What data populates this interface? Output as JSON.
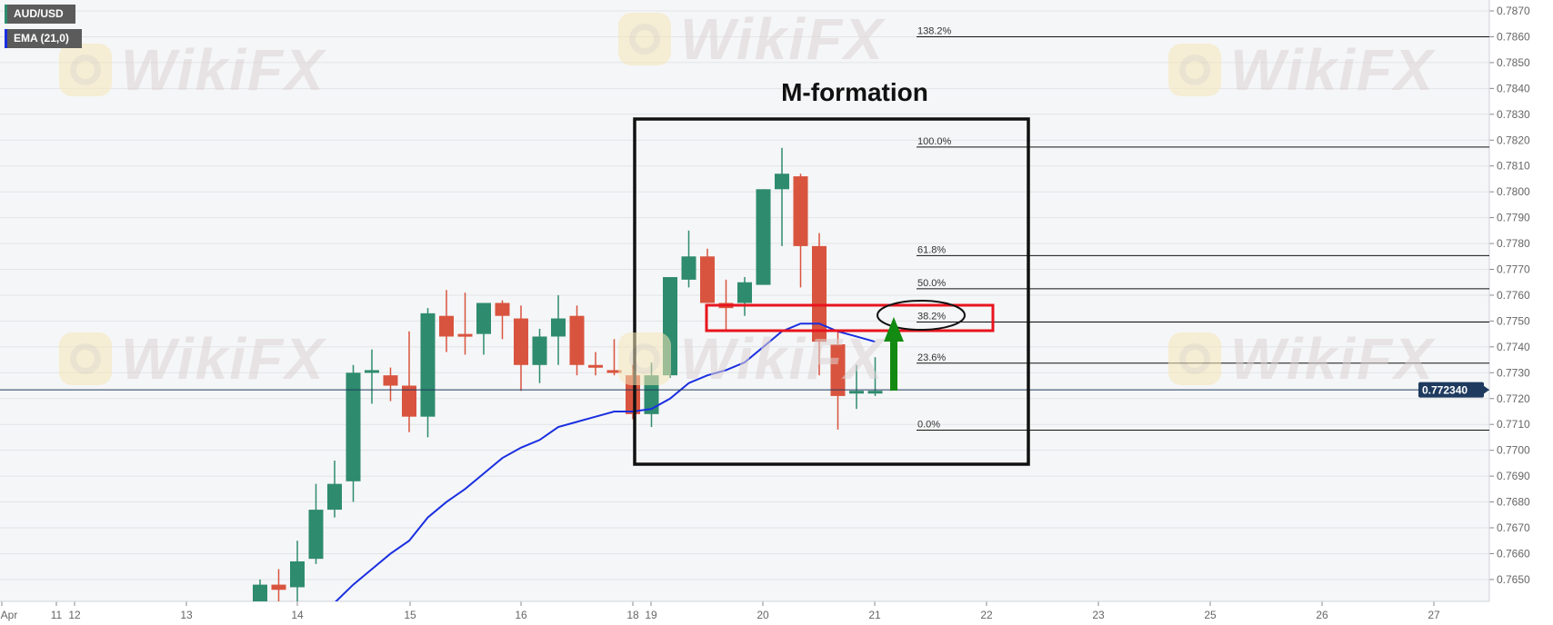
{
  "legend": {
    "symbol": "AUD/USD",
    "indicator": "EMA (21,0)"
  },
  "watermark": "WikiFX",
  "annotation": {
    "title": "M-formation"
  },
  "colors": {
    "up": "#2e8b6e",
    "down": "#d9543f",
    "ema": "#1a2fe0",
    "price_line": "#1e3a5f",
    "highlight_box": "#e8141e",
    "arrow": "#138a12",
    "frame": "#111111"
  },
  "chart_data": {
    "type": "candlestick",
    "symbol": "AUD/USD",
    "ylim": [
      0.7641,
      0.7874
    ],
    "grid": true,
    "y_ticks": [
      "0.7870",
      "0.7860",
      "0.7850",
      "0.7840",
      "0.7830",
      "0.7820",
      "0.7810",
      "0.7800",
      "0.7790",
      "0.7780",
      "0.7770",
      "0.7760",
      "0.7750",
      "0.7740",
      "0.7730",
      "0.7720",
      "0.7710",
      "0.7700",
      "0.7690",
      "0.7680",
      "0.7670",
      "0.7660",
      "0.7650"
    ],
    "x_ticks": [
      "Apr",
      "11",
      "12",
      "13",
      "14",
      "15",
      "16",
      "18",
      "19",
      "20",
      "21",
      "22",
      "23",
      "25",
      "26",
      "27"
    ],
    "last_price": "0.772340",
    "last_price_value": 0.77234,
    "candles": [
      {
        "t": "Apr 13 16:00",
        "o": 0.7638,
        "h": 0.765,
        "l": 0.7635,
        "c": 0.7648
      },
      {
        "t": "Apr 13 20:00",
        "o": 0.7648,
        "h": 0.7654,
        "l": 0.764,
        "c": 0.7646
      },
      {
        "t": "Apr 14 00:00",
        "o": 0.7647,
        "h": 0.7665,
        "l": 0.764,
        "c": 0.7657
      },
      {
        "t": "Apr 14 04:00",
        "o": 0.7658,
        "h": 0.7687,
        "l": 0.7656,
        "c": 0.7677
      },
      {
        "t": "Apr 14 08:00",
        "o": 0.7677,
        "h": 0.7696,
        "l": 0.7674,
        "c": 0.7687
      },
      {
        "t": "Apr 14 12:00",
        "o": 0.7688,
        "h": 0.7733,
        "l": 0.768,
        "c": 0.773
      },
      {
        "t": "Apr 14 16:00",
        "o": 0.773,
        "h": 0.7739,
        "l": 0.7718,
        "c": 0.7731
      },
      {
        "t": "Apr 14 20:00",
        "o": 0.7729,
        "h": 0.7732,
        "l": 0.7719,
        "c": 0.7725
      },
      {
        "t": "Apr 15 00:00",
        "o": 0.7725,
        "h": 0.7746,
        "l": 0.7707,
        "c": 0.7713
      },
      {
        "t": "Apr 15 04:00",
        "o": 0.7713,
        "h": 0.7755,
        "l": 0.7705,
        "c": 0.7753
      },
      {
        "t": "Apr 15 08:00",
        "o": 0.7752,
        "h": 0.7762,
        "l": 0.7738,
        "c": 0.7744
      },
      {
        "t": "Apr 15 12:00",
        "o": 0.7745,
        "h": 0.7761,
        "l": 0.7737,
        "c": 0.7744
      },
      {
        "t": "Apr 15 16:00",
        "o": 0.7745,
        "h": 0.7757,
        "l": 0.7737,
        "c": 0.7757
      },
      {
        "t": "Apr 15 20:00",
        "o": 0.7757,
        "h": 0.7758,
        "l": 0.7743,
        "c": 0.7752
      },
      {
        "t": "Apr 16 00:00",
        "o": 0.7751,
        "h": 0.7756,
        "l": 0.7723,
        "c": 0.7733
      },
      {
        "t": "Apr 16 04:00",
        "o": 0.7733,
        "h": 0.7747,
        "l": 0.7726,
        "c": 0.7744
      },
      {
        "t": "Apr 16 08:00",
        "o": 0.7744,
        "h": 0.776,
        "l": 0.7733,
        "c": 0.7751
      },
      {
        "t": "Apr 16 12:00",
        "o": 0.7752,
        "h": 0.7756,
        "l": 0.7729,
        "c": 0.7733
      },
      {
        "t": "Apr 16 16:00",
        "o": 0.7733,
        "h": 0.7738,
        "l": 0.7729,
        "c": 0.7732
      },
      {
        "t": "Apr 16 20:00",
        "o": 0.7731,
        "h": 0.7743,
        "l": 0.7729,
        "c": 0.773
      },
      {
        "t": "Apr 18 21:00",
        "o": 0.7729,
        "h": 0.7733,
        "l": 0.7712,
        "c": 0.7714
      },
      {
        "t": "Apr 19 00:00",
        "o": 0.7714,
        "h": 0.7734,
        "l": 0.7709,
        "c": 0.7729
      },
      {
        "t": "Apr 19 04:00",
        "o": 0.7729,
        "h": 0.7767,
        "l": 0.7728,
        "c": 0.7767
      },
      {
        "t": "Apr 19 08:00",
        "o": 0.7766,
        "h": 0.7785,
        "l": 0.7763,
        "c": 0.7775
      },
      {
        "t": "Apr 19 12:00",
        "o": 0.7775,
        "h": 0.7778,
        "l": 0.7757,
        "c": 0.7757
      },
      {
        "t": "Apr 19 16:00",
        "o": 0.7757,
        "h": 0.7766,
        "l": 0.7746,
        "c": 0.7755
      },
      {
        "t": "Apr 19 20:00",
        "o": 0.7757,
        "h": 0.7767,
        "l": 0.7752,
        "c": 0.7765
      },
      {
        "t": "Apr 20 00:00",
        "o": 0.7764,
        "h": 0.7801,
        "l": 0.7764,
        "c": 0.7801
      },
      {
        "t": "Apr 20 04:00",
        "o": 0.7801,
        "h": 0.7817,
        "l": 0.7779,
        "c": 0.7807
      },
      {
        "t": "Apr 20 08:00",
        "o": 0.7806,
        "h": 0.7807,
        "l": 0.7763,
        "c": 0.7779
      },
      {
        "t": "Apr 20 12:00",
        "o": 0.7779,
        "h": 0.7784,
        "l": 0.7729,
        "c": 0.7742
      },
      {
        "t": "Apr 20 16:00",
        "o": 0.7741,
        "h": 0.7746,
        "l": 0.7708,
        "c": 0.7721
      },
      {
        "t": "Apr 20 20:00",
        "o": 0.7722,
        "h": 0.7733,
        "l": 0.7716,
        "c": 0.7723
      },
      {
        "t": "Apr 21 00:00",
        "o": 0.7722,
        "h": 0.7736,
        "l": 0.7721,
        "c": 0.7723
      }
    ],
    "ema": {
      "name": "EMA (21,0)",
      "values": [
        null,
        null,
        null,
        null,
        0.7641,
        0.7648,
        0.7654,
        0.766,
        0.7665,
        0.7674,
        0.768,
        0.7685,
        0.7691,
        0.7697,
        0.7701,
        0.7704,
        0.7709,
        0.7711,
        0.7713,
        0.7715,
        0.7715,
        0.7716,
        0.772,
        0.7726,
        0.7729,
        0.7731,
        0.7734,
        0.774,
        0.7746,
        0.7749,
        0.7749,
        0.7746,
        0.7744,
        0.7742
      ]
    },
    "fibonacci": [
      {
        "label": "138.2%",
        "value": 0.786
      },
      {
        "label": "100.0%",
        "value": 0.78173
      },
      {
        "label": "61.8%",
        "value": 0.77753
      },
      {
        "label": "50.0%",
        "value": 0.77625
      },
      {
        "label": "38.2%",
        "value": 0.77496
      },
      {
        "label": "23.6%",
        "value": 0.77337
      },
      {
        "label": "0.0%",
        "value": 0.77078
      }
    ]
  }
}
